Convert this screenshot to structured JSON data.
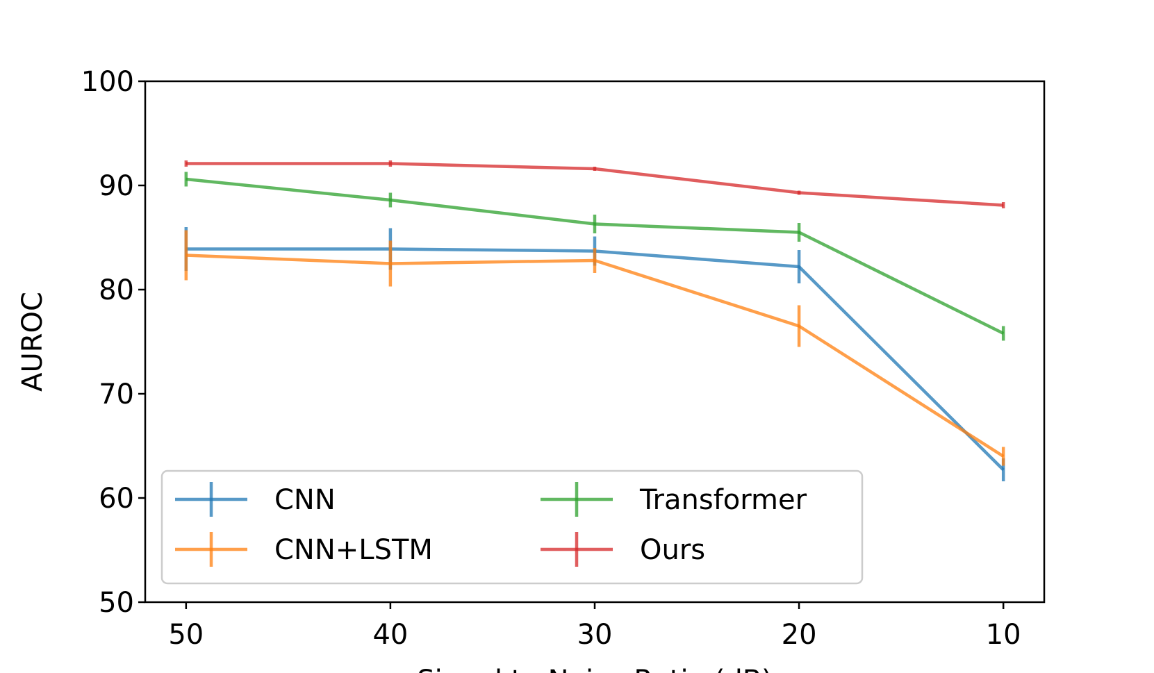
{
  "chart_data": {
    "type": "line",
    "title": "",
    "xlabel": "Signal to Noise Ratio (dB)",
    "ylabel": "AUROC",
    "x": [
      50,
      40,
      30,
      20,
      10
    ],
    "xlim": [
      52,
      8
    ],
    "ylim": [
      50,
      100
    ],
    "yticks": [
      50,
      60,
      70,
      80,
      90,
      100
    ],
    "xticks": [
      50,
      40,
      30,
      20,
      10
    ],
    "grid": false,
    "legend_position": "lower-left",
    "legend_columns": 2,
    "series": [
      {
        "name": "CNN",
        "color": "#1f77b4",
        "values": [
          83.9,
          83.9,
          83.7,
          82.2,
          62.7
        ],
        "errors": [
          2.1,
          2.0,
          1.4,
          1.6,
          1.1
        ]
      },
      {
        "name": "CNN+LSTM",
        "color": "#ff7f0e",
        "values": [
          83.3,
          82.5,
          82.8,
          76.5,
          64.0
        ],
        "errors": [
          2.4,
          2.2,
          1.2,
          2.0,
          0.9
        ]
      },
      {
        "name": "Transformer",
        "color": "#2ca02c",
        "values": [
          90.6,
          88.6,
          86.3,
          85.5,
          75.8
        ],
        "errors": [
          0.7,
          0.7,
          0.9,
          0.9,
          0.7
        ]
      },
      {
        "name": "Ours",
        "color": "#d62728",
        "values": [
          92.1,
          92.1,
          91.6,
          89.3,
          88.1
        ],
        "errors": [
          0.3,
          0.3,
          0.2,
          0.2,
          0.3
        ]
      }
    ]
  }
}
